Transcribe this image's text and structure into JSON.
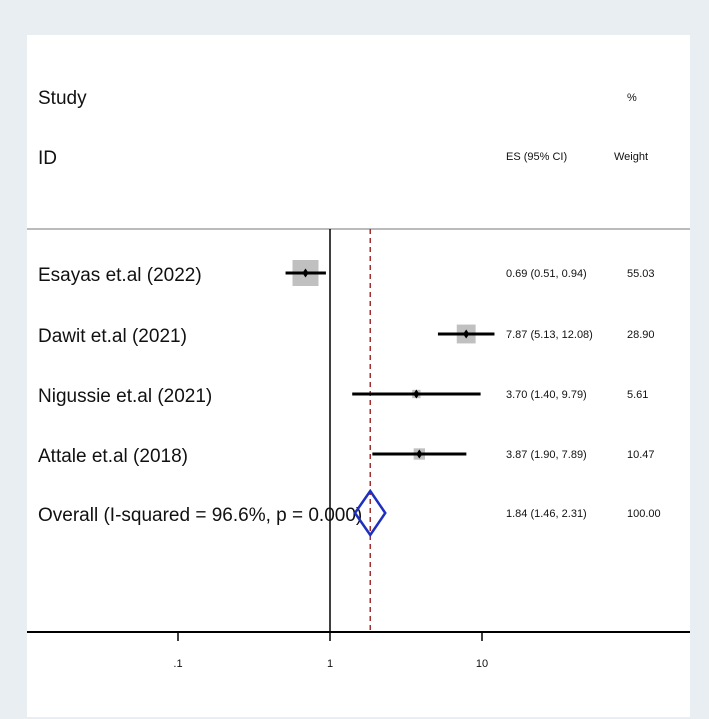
{
  "chart_data": {
    "type": "forest",
    "headers": {
      "study": "Study",
      "id": "ID",
      "es": "ES (95% CI)",
      "pct": "%",
      "weight": "Weight"
    },
    "studies": [
      {
        "label": "Esayas et.al (2022)",
        "es": 0.69,
        "lo": 0.51,
        "hi": 0.94,
        "es_text": "0.69 (0.51, 0.94)",
        "weight": 55.03,
        "weight_text": "55.03"
      },
      {
        "label": "Dawit et.al (2021)",
        "es": 7.87,
        "lo": 5.13,
        "hi": 12.08,
        "es_text": "7.87 (5.13, 12.08)",
        "weight": 28.9,
        "weight_text": "28.90"
      },
      {
        "label": "Nigussie et.al (2021)",
        "es": 3.7,
        "lo": 1.4,
        "hi": 9.79,
        "es_text": "3.70 (1.40, 9.79)",
        "weight": 5.61,
        "weight_text": "5.61"
      },
      {
        "label": "Attale et.al (2018)",
        "es": 3.87,
        "lo": 1.9,
        "hi": 7.89,
        "es_text": "3.87 (1.90, 7.89)",
        "weight": 10.47,
        "weight_text": "10.47"
      }
    ],
    "overall": {
      "label": "Overall  (I-squared = 96.6%, p = 0.000)",
      "es": 1.84,
      "lo": 1.46,
      "hi": 2.31,
      "es_text": "1.84 (1.46, 2.31)",
      "weight_text": "100.00"
    },
    "x_scale": "log",
    "x_ticks": [
      {
        "value": 0.1,
        "label": ".1"
      },
      {
        "value": 1,
        "label": "1"
      },
      {
        "value": 10,
        "label": "10"
      }
    ],
    "null_line": 1,
    "colors": {
      "ci": "#000000",
      "box": "#c0c0c0",
      "point": "#000000",
      "diamond": "#1f2fbf",
      "overall_line": "#a03030",
      "frame": "#e8eef2"
    }
  }
}
